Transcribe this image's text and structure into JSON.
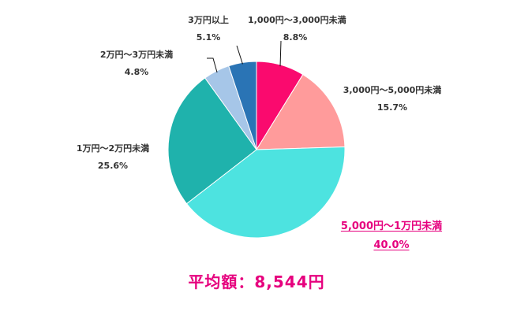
{
  "chart_data": {
    "type": "pie",
    "categories": [
      "1,000円～3,000円未満",
      "3,000円～5,000円未満",
      "5,000円～1万円未満",
      "1万円～2万円未満",
      "2万円～3万円未満",
      "3万円以上"
    ],
    "values": [
      8.8,
      15.7,
      40.0,
      25.6,
      4.8,
      5.1
    ],
    "value_labels": [
      "8.8%",
      "15.7%",
      "40.0%",
      "25.6%",
      "4.8%",
      "5.1%"
    ],
    "colors": [
      "#fa0a6e",
      "#ff9b9b",
      "#4de3e0",
      "#1fb2ac",
      "#a6c6e8",
      "#2a74b5"
    ],
    "start_angle_deg": 0,
    "direction": "clockwise",
    "highlight_index": 2,
    "highlight_color": "#e6007e"
  },
  "footer": {
    "average_text": "平均額：8,544円"
  }
}
